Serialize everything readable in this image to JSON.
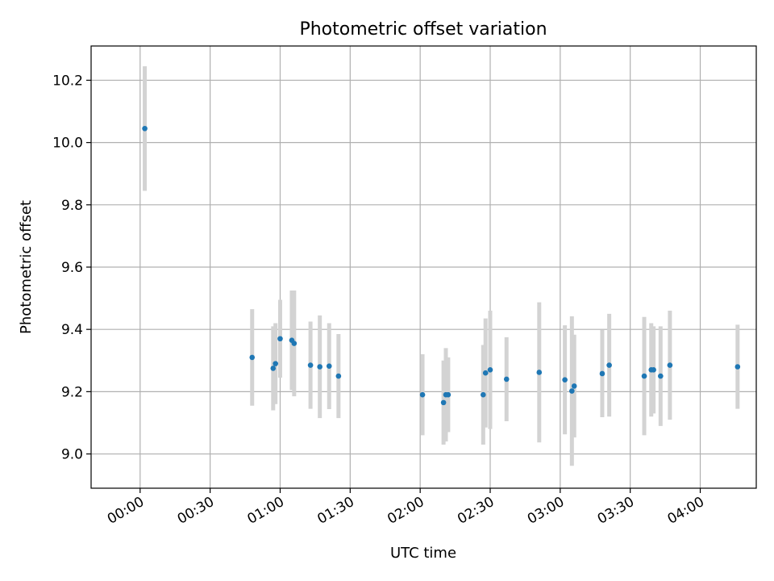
{
  "chart_data": {
    "type": "scatter",
    "title": "Photometric offset variation",
    "xlabel": "UTC time",
    "ylabel": "Photometric offset",
    "xlim_minutes": [
      -21,
      264
    ],
    "ylim": [
      8.89,
      10.31
    ],
    "x_ticks": [
      "00:00",
      "00:30",
      "01:00",
      "01:30",
      "02:00",
      "02:30",
      "03:00",
      "03:30",
      "04:00"
    ],
    "y_ticks": [
      "9.0",
      "9.2",
      "9.4",
      "9.6",
      "9.8",
      "10.0",
      "10.2"
    ],
    "y_tick_values": [
      9.0,
      9.2,
      9.4,
      9.6,
      9.8,
      10.0,
      10.2
    ],
    "grid": true,
    "point_color": "#1f77b4",
    "errorbar_color": "#d3d3d3",
    "points": [
      {
        "x": "00:02",
        "y": 10.045,
        "err": 0.2
      },
      {
        "x": "00:48",
        "y": 9.31,
        "err": 0.155
      },
      {
        "x": "00:57",
        "y": 9.275,
        "err": 0.135
      },
      {
        "x": "00:58",
        "y": 9.29,
        "err": 0.13
      },
      {
        "x": "01:00",
        "y": 9.37,
        "err": 0.125
      },
      {
        "x": "01:05",
        "y": 9.365,
        "err": 0.16
      },
      {
        "x": "01:06",
        "y": 9.355,
        "err": 0.17
      },
      {
        "x": "01:13",
        "y": 9.285,
        "err": 0.14
      },
      {
        "x": "01:17",
        "y": 9.28,
        "err": 0.165
      },
      {
        "x": "01:21",
        "y": 9.282,
        "err": 0.138
      },
      {
        "x": "01:25",
        "y": 9.25,
        "err": 0.135
      },
      {
        "x": "02:01",
        "y": 9.19,
        "err": 0.13
      },
      {
        "x": "02:10",
        "y": 9.165,
        "err": 0.135
      },
      {
        "x": "02:11",
        "y": 9.19,
        "err": 0.15
      },
      {
        "x": "02:12",
        "y": 9.19,
        "err": 0.12
      },
      {
        "x": "02:27",
        "y": 9.19,
        "err": 0.16
      },
      {
        "x": "02:28",
        "y": 9.26,
        "err": 0.175
      },
      {
        "x": "02:30",
        "y": 9.27,
        "err": 0.19
      },
      {
        "x": "02:37",
        "y": 9.24,
        "err": 0.135
      },
      {
        "x": "02:51",
        "y": 9.262,
        "err": 0.225
      },
      {
        "x": "03:02",
        "y": 9.238,
        "err": 0.175
      },
      {
        "x": "03:05",
        "y": 9.202,
        "err": 0.24
      },
      {
        "x": "03:06",
        "y": 9.218,
        "err": 0.165
      },
      {
        "x": "03:18",
        "y": 9.258,
        "err": 0.14
      },
      {
        "x": "03:21",
        "y": 9.285,
        "err": 0.165
      },
      {
        "x": "03:36",
        "y": 9.25,
        "err": 0.19
      },
      {
        "x": "03:39",
        "y": 9.27,
        "err": 0.15
      },
      {
        "x": "03:40",
        "y": 9.27,
        "err": 0.14
      },
      {
        "x": "03:43",
        "y": 9.25,
        "err": 0.16
      },
      {
        "x": "03:47",
        "y": 9.285,
        "err": 0.175
      },
      {
        "x": "04:16",
        "y": 9.28,
        "err": 0.135
      }
    ]
  }
}
